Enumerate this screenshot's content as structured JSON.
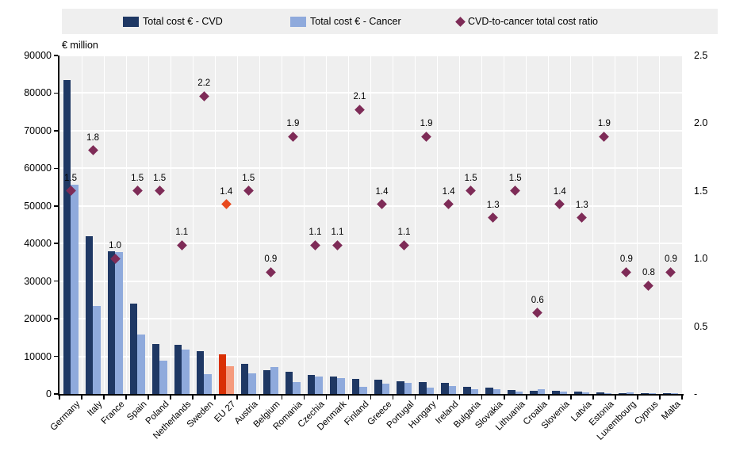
{
  "legend": {
    "cvd_label": "Total cost € - CVD",
    "cancer_label": "Total cost € - Cancer",
    "ratio_label": "CVD-to-cancer total cost ratio"
  },
  "chart_data": {
    "type": "bar",
    "title": "",
    "unit_label": "€ million",
    "categories": [
      "Germany",
      "Italy",
      "France",
      "Spain",
      "Poland",
      "Netherlands",
      "Sweden",
      "EU 27",
      "Austria",
      "Belgium",
      "Romania",
      "Czechia",
      "Denmark",
      "Finland",
      "Greece",
      "Portugal",
      "Hungary",
      "Ireland",
      "Bulgaria",
      "Slovakia",
      "Lithuania",
      "Croatia",
      "Slovenia",
      "Latvia",
      "Estonia",
      "Luxembourg",
      "Cyprus",
      "Malta"
    ],
    "highlight_category": "EU 27",
    "series": [
      {
        "name": "Total cost € - CVD",
        "type": "bar",
        "axis": "left",
        "values": [
          83500,
          42000,
          38000,
          24000,
          13200,
          13000,
          11300,
          10500,
          8100,
          6400,
          6000,
          5000,
          4600,
          4100,
          3900,
          3300,
          3100,
          3000,
          1800,
          1750,
          1100,
          800,
          800,
          600,
          500,
          310,
          250,
          150
        ]
      },
      {
        "name": "Total cost € - Cancer",
        "type": "bar",
        "axis": "left",
        "values": [
          55600,
          23300,
          37700,
          15800,
          8900,
          11900,
          5200,
          7400,
          5400,
          7100,
          3200,
          4600,
          4200,
          2000,
          2800,
          3000,
          1650,
          2100,
          1200,
          1350,
          730,
          1330,
          570,
          460,
          260,
          340,
          310,
          170
        ]
      },
      {
        "name": "CVD-to-cancer total cost ratio",
        "type": "scatter-diamond",
        "axis": "right",
        "values": [
          1.5,
          1.8,
          1.0,
          1.5,
          1.5,
          1.1,
          2.2,
          1.4,
          1.5,
          0.9,
          1.9,
          1.1,
          1.1,
          2.1,
          1.4,
          1.1,
          1.9,
          1.4,
          1.5,
          1.3,
          1.5,
          0.6,
          1.4,
          1.3,
          1.9,
          0.9,
          0.8,
          0.9
        ],
        "labels": [
          "1.5",
          "1.8",
          "1.0",
          "1.5",
          "1.5",
          "1.1",
          "2.2",
          "1.4",
          "1.5",
          "0.9",
          "1.9",
          "1.1",
          "1.1",
          "2.1",
          "1.4",
          "1.1",
          "1.9",
          "1.4",
          "1.5",
          "1.3",
          "1.5",
          "0.6",
          "1.4",
          "1.3",
          "1.9",
          "0.9",
          "0.8",
          "0.9"
        ]
      }
    ],
    "left_axis": {
      "min": 0,
      "max": 90000,
      "step": 10000,
      "tick_labels": [
        "0",
        "10000",
        "20000",
        "30000",
        "40000",
        "50000",
        "60000",
        "70000",
        "80000",
        "90000"
      ]
    },
    "right_axis": {
      "min": 0,
      "max": 2.5,
      "step": 0.5,
      "tick_labels": [
        "-",
        "0.5",
        "1.0",
        "1.5",
        "2.0",
        "2.5"
      ]
    },
    "grid": true,
    "legend_position": "top",
    "colors": {
      "cvd": "#1f3864",
      "cancer": "#8faadc",
      "cvd_highlight": "#d93004",
      "cancer_highlight": "#f59b7d",
      "ratio": "#7e2b57",
      "ratio_highlight": "#e8491d",
      "plot_bg": "#efefef",
      "gridline": "#ffffff"
    }
  }
}
